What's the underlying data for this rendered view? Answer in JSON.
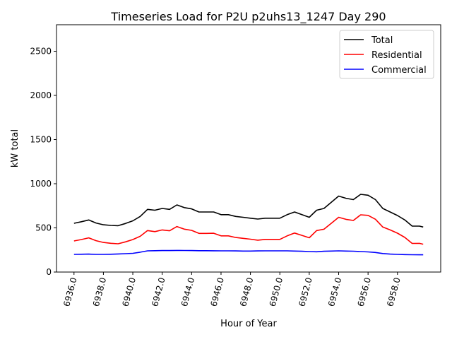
{
  "chart_data": {
    "type": "line",
    "title": "Timeseries Load for P2U p2uhs13_1247  Day 290",
    "xlabel": "Hour of Year",
    "ylabel": "kW total",
    "xlim": [
      6934.81,
      6960.94
    ],
    "ylim": [
      0,
      2800
    ],
    "xticks": [
      6936,
      6938,
      6940,
      6942,
      6944,
      6946,
      6948,
      6950,
      6952,
      6954,
      6956,
      6958
    ],
    "xtick_labels": [
      "6936.0",
      "6938.0",
      "6940.0",
      "6942.0",
      "6944.0",
      "6946.0",
      "6948.0",
      "6950.0",
      "6952.0",
      "6954.0",
      "6956.0",
      "6958.0"
    ],
    "yticks": [
      0,
      500,
      1000,
      1500,
      2000,
      2500
    ],
    "ytick_labels": [
      "0",
      "500",
      "1000",
      "1500",
      "2000",
      "2500"
    ],
    "grid": false,
    "legend_position": "top-right",
    "x": [
      6936,
      6936.5,
      6937,
      6937.5,
      6938,
      6938.5,
      6939,
      6939.5,
      6940,
      6940.5,
      6941,
      6941.5,
      6942,
      6942.5,
      6943,
      6943.5,
      6944,
      6944.5,
      6945,
      6945.5,
      6946,
      6946.5,
      6947,
      6947.5,
      6948,
      6948.5,
      6949,
      6949.5,
      6950,
      6950.5,
      6951,
      6951.5,
      6952,
      6952.5,
      6953,
      6953.5,
      6954,
      6954.5,
      6955,
      6955.5,
      6956,
      6956.5,
      6957,
      6957.5,
      6958,
      6958.5,
      6959,
      6959.5,
      6959.75
    ],
    "series": [
      {
        "name": "Total",
        "color": "#000000",
        "values": [
          552,
          570,
          590,
          555,
          535,
          528,
          525,
          550,
          580,
          630,
          710,
          700,
          720,
          710,
          760,
          730,
          715,
          680,
          680,
          680,
          650,
          650,
          630,
          620,
          610,
          600,
          610,
          610,
          610,
          650,
          680,
          650,
          620,
          700,
          720,
          790,
          860,
          835,
          820,
          880,
          870,
          820,
          720,
          680,
          640,
          590,
          520,
          520,
          510
        ]
      },
      {
        "name": "Residential",
        "color": "#ff0000",
        "values": [
          352,
          368,
          387,
          355,
          335,
          326,
          320,
          342,
          368,
          405,
          470,
          458,
          477,
          467,
          515,
          486,
          472,
          438,
          438,
          439,
          410,
          410,
          391,
          382,
          372,
          361,
          370,
          370,
          370,
          410,
          442,
          415,
          388,
          470,
          485,
          552,
          620,
          597,
          584,
          648,
          642,
          598,
          510,
          477,
          440,
          392,
          324,
          325,
          315
        ]
      },
      {
        "name": "Commercial",
        "color": "#0000ff",
        "values": [
          200,
          202,
          203,
          200,
          200,
          202,
          205,
          208,
          212,
          225,
          240,
          242,
          243,
          243,
          245,
          244,
          243,
          242,
          242,
          241,
          240,
          240,
          239,
          238,
          238,
          239,
          240,
          240,
          240,
          240,
          238,
          235,
          232,
          230,
          235,
          238,
          240,
          238,
          236,
          232,
          228,
          222,
          210,
          203,
          200,
          198,
          196,
          195,
          195
        ]
      }
    ]
  }
}
